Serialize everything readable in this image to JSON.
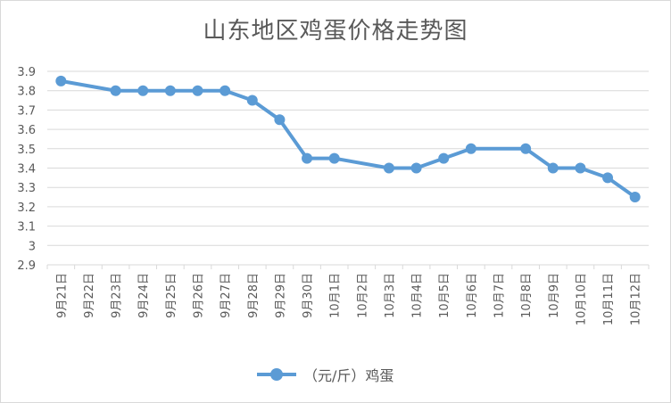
{
  "chart_data": {
    "type": "line",
    "title": "山东地区鸡蛋价格走势图",
    "categories": [
      "9月21日",
      "9月22日",
      "9月23日",
      "9月24日",
      "9月25日",
      "9月26日",
      "9月27日",
      "9月28日",
      "9月29日",
      "9月30日",
      "10月1日",
      "10月2日",
      "10月3日",
      "10月4日",
      "10月5日",
      "10月6日",
      "10月7日",
      "10月8日",
      "10月9日",
      "10月10日",
      "10月11日",
      "10月12日"
    ],
    "series": [
      {
        "name": "（元/斤）鸡蛋",
        "values": [
          3.85,
          null,
          3.8,
          3.8,
          3.8,
          3.8,
          3.8,
          3.75,
          3.65,
          3.45,
          3.45,
          null,
          3.4,
          3.4,
          3.45,
          3.5,
          null,
          3.5,
          3.4,
          3.4,
          3.35,
          3.25
        ]
      }
    ],
    "ylim": [
      2.9,
      3.9
    ],
    "yticks": [
      "2.9",
      "3",
      "3.1",
      "3.2",
      "3.3",
      "3.4",
      "3.5",
      "3.6",
      "3.7",
      "3.8",
      "3.9"
    ],
    "grid": true,
    "legend": "bottom",
    "color": "#5b9bd5"
  }
}
